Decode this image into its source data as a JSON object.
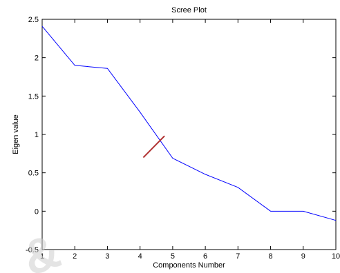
{
  "chart_data": {
    "type": "line",
    "title": "Scree Plot",
    "xlabel": "Components Number",
    "ylabel": "Eigen value",
    "xlim": [
      1,
      10
    ],
    "ylim": [
      -0.5,
      2.5
    ],
    "xticks": [
      1,
      2,
      3,
      4,
      5,
      6,
      7,
      8,
      9,
      10
    ],
    "yticks": [
      -0.5,
      0,
      0.5,
      1,
      1.5,
      2,
      2.5
    ],
    "ytick_labels": [
      "-0.5",
      "0",
      "0.5",
      "1",
      "1.5",
      "2",
      "2.5"
    ],
    "grid": false,
    "series": [
      {
        "color": "#0000ff",
        "x": [
          1,
          2,
          3,
          4,
          5,
          6,
          7,
          8,
          9,
          10
        ],
        "values": [
          2.41,
          1.9,
          1.86,
          1.29,
          0.69,
          0.48,
          0.31,
          0.0,
          0.0,
          -0.12
        ]
      }
    ],
    "annotations": [
      {
        "type": "segment",
        "color": "#b03030",
        "x": [
          4.1,
          4.75
        ],
        "y": [
          0.7,
          0.98
        ]
      }
    ]
  },
  "watermark": {
    "text": "&",
    "color": "#cfcfcf"
  }
}
